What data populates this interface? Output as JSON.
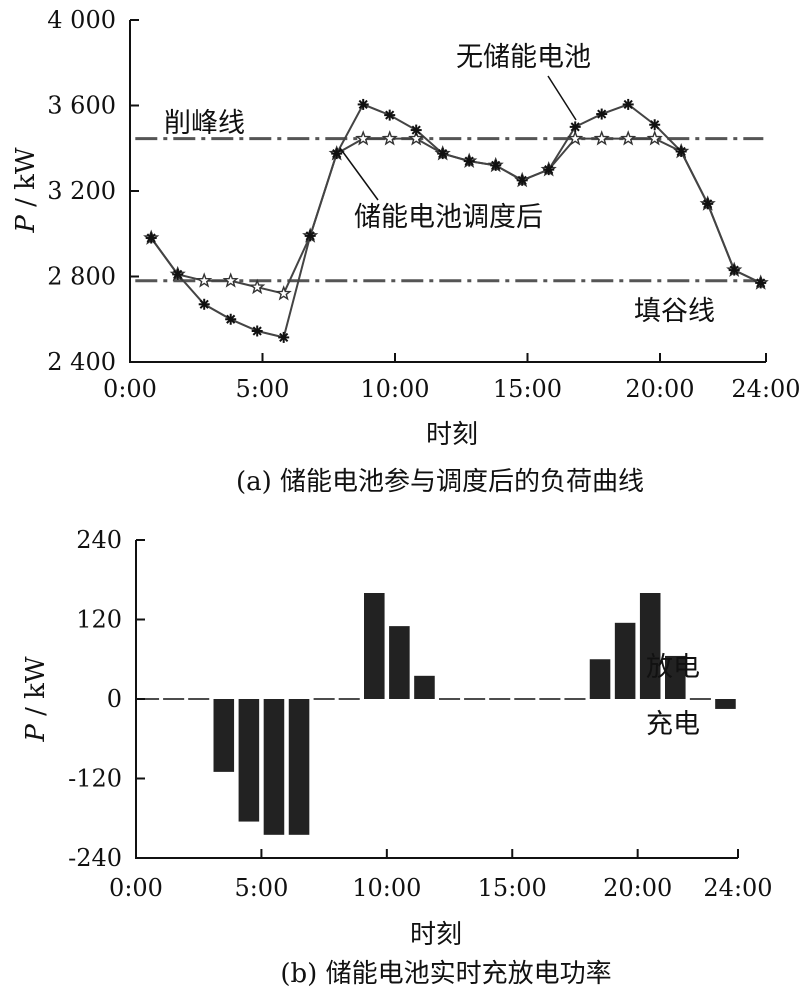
{
  "chart_data": [
    {
      "type": "line",
      "caption": "(a)  储能电池参与调度后的负荷曲线",
      "xlabel": "时刻",
      "ylabel_italic": "P",
      "ylabel_unit": " / kW",
      "xlim": [
        0,
        24
      ],
      "ylim": [
        2400,
        4000
      ],
      "xticks": [
        0,
        5,
        10,
        15,
        20,
        24
      ],
      "xtick_labels": [
        "0:00",
        "5:00",
        "10:00",
        "15:00",
        "20:00",
        "24:00"
      ],
      "yticks": [
        2400,
        2800,
        3200,
        3600,
        4000
      ],
      "ytick_labels": [
        "2 400",
        "2 800",
        "3 200",
        "3 600",
        "4 000"
      ],
      "x": [
        0.8,
        1.8,
        2.8,
        3.8,
        4.8,
        5.8,
        6.8,
        7.8,
        8.8,
        9.8,
        10.8,
        11.8,
        12.8,
        13.8,
        14.8,
        15.8,
        16.8,
        17.8,
        18.8,
        19.8,
        20.8,
        21.8,
        22.8,
        23.8
      ],
      "series": [
        {
          "name": "无储能电池",
          "marker": "asterisk",
          "values": [
            2980,
            2810,
            2670,
            2600,
            2545,
            2515,
            2990,
            3375,
            3605,
            3555,
            3485,
            3375,
            3340,
            3320,
            3250,
            3300,
            3500,
            3560,
            3605,
            3510,
            3385,
            3140,
            2830,
            2770
          ]
        },
        {
          "name": "储能电池调度后",
          "marker": "star",
          "values": [
            2980,
            2810,
            2780,
            2780,
            2750,
            2720,
            2990,
            3375,
            3445,
            3445,
            3445,
            3375,
            3340,
            3320,
            3250,
            3300,
            3445,
            3445,
            3445,
            3445,
            3385,
            3140,
            2830,
            2770
          ]
        }
      ],
      "reference_lines": [
        {
          "label": "削峰线",
          "y": 3445
        },
        {
          "label": "填谷线",
          "y": 2780
        }
      ],
      "grid": false
    },
    {
      "type": "bar",
      "caption": "(b)  储能电池实时充放电功率",
      "xlabel": "时刻",
      "ylabel_italic": "P",
      "ylabel_unit": " / kW",
      "xlim": [
        0,
        24
      ],
      "ylim": [
        -240,
        240
      ],
      "xticks": [
        0,
        5,
        10,
        15,
        20,
        24
      ],
      "xtick_labels": [
        "0:00",
        "5:00",
        "10:00",
        "15:00",
        "20:00",
        "24:00"
      ],
      "yticks": [
        -240,
        -120,
        0,
        120,
        240
      ],
      "ytick_labels": [
        "-240",
        "-120",
        "0",
        "120",
        "240"
      ],
      "x": [
        0.5,
        1.5,
        2.5,
        3.5,
        4.5,
        5.5,
        6.5,
        7.5,
        8.5,
        9.5,
        10.5,
        11.5,
        12.5,
        13.5,
        14.5,
        15.5,
        16.5,
        17.5,
        18.5,
        19.5,
        20.5,
        21.5,
        22.5,
        23.5
      ],
      "values": [
        0,
        0,
        0,
        -110,
        -185,
        -205,
        -205,
        0,
        0,
        160,
        110,
        35,
        0,
        0,
        0,
        0,
        0,
        0,
        60,
        115,
        160,
        65,
        0,
        -15
      ],
      "annotations": [
        {
          "text": "放电"
        },
        {
          "text": "充电"
        }
      ],
      "grid": false
    }
  ]
}
